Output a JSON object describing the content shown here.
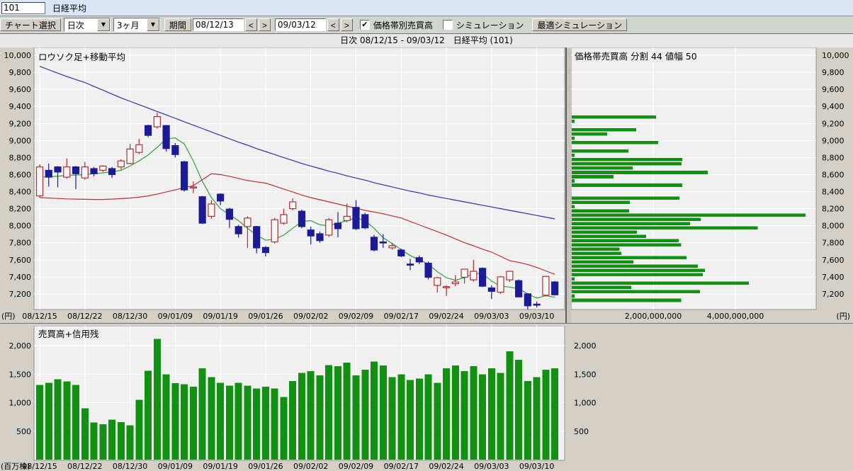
{
  "titlebar": {
    "stock_code": "101",
    "stock_name": "日経平均"
  },
  "toolbar": {
    "chart_select_button": "チャート選択",
    "frequency_select": "日次",
    "span_select": "3ヶ月",
    "period_button": "期間",
    "date_from": "08/12/13",
    "date_to": "09/03/12",
    "prev_button": "<",
    "next_button": ">",
    "volume_by_price_checkbox": {
      "label": "価格帯別売買高",
      "checked": true
    },
    "simulation_checkbox": {
      "label": "シミュレーション",
      "checked": false
    },
    "optimal_simulation_button": "最適シミュレーション"
  },
  "header_strip": {
    "text": "日次 08/12/15 - 09/03/12　日経平均 (101)"
  },
  "colors": {
    "candle_up": "#b03030",
    "candle_down": "#1b1b96",
    "ma_long": "#3030b0",
    "ma_mid": "#c03030",
    "ma_short": "#2f9f3f",
    "volume_bar": "#129012",
    "plot_bg": "#f0f0f0",
    "gutter": "#d4d0c8",
    "grid": "#ffffff"
  },
  "chart_data": [
    {
      "id": "main",
      "type": "candlestick",
      "title": "ロウソク足+移動平均",
      "unit_label": "(円)",
      "y_ticks": [
        7200,
        7400,
        7600,
        7800,
        8000,
        8200,
        8400,
        8600,
        8800,
        9000,
        9200,
        9400,
        9600,
        9800,
        10000
      ],
      "x_tick_indices": [
        0,
        5,
        10,
        15,
        20,
        25,
        30,
        35,
        40,
        45,
        50,
        55
      ],
      "x_tick_labels": [
        "08/12/15",
        "08/12/22",
        "08/12/30",
        "09/01/09",
        "09/01/19",
        "09/01/26",
        "09/02/02",
        "09/02/09",
        "09/02/17",
        "09/02/24",
        "09/03/03",
        "09/03/10"
      ],
      "dates": [
        "08/12/15",
        "08/12/16",
        "08/12/17",
        "08/12/18",
        "08/12/19",
        "08/12/22",
        "08/12/24",
        "08/12/25",
        "08/12/26",
        "08/12/29",
        "08/12/30",
        "09/01/05",
        "09/01/06",
        "09/01/07",
        "09/01/08",
        "09/01/09",
        "09/01/13",
        "09/01/14",
        "09/01/15",
        "09/01/16",
        "09/01/19",
        "09/01/20",
        "09/01/21",
        "09/01/22",
        "09/01/23",
        "09/01/26",
        "09/01/27",
        "09/01/28",
        "09/01/29",
        "09/01/30",
        "09/02/02",
        "09/02/03",
        "09/02/04",
        "09/02/05",
        "09/02/06",
        "09/02/09",
        "09/02/10",
        "09/02/12",
        "09/02/13",
        "09/02/16",
        "09/02/17",
        "09/02/18",
        "09/02/19",
        "09/02/20",
        "09/02/23",
        "09/02/24",
        "09/02/25",
        "09/02/26",
        "09/02/27",
        "09/03/02",
        "09/03/03",
        "09/03/04",
        "09/03/05",
        "09/03/06",
        "09/03/09",
        "09/03/10",
        "09/03/11",
        "09/03/12"
      ],
      "ohlc": [
        [
          8350,
          8720,
          8330,
          8690
        ],
        [
          8650,
          8730,
          8460,
          8570
        ],
        [
          8690,
          8700,
          8450,
          8630
        ],
        [
          8570,
          8790,
          8550,
          8690
        ],
        [
          8690,
          8700,
          8430,
          8610
        ],
        [
          8560,
          8750,
          8540,
          8690
        ],
        [
          8670,
          8690,
          8580,
          8610
        ],
        [
          8650,
          8710,
          8630,
          8700
        ],
        [
          8670,
          8690,
          8560,
          8600
        ],
        [
          8690,
          8780,
          8660,
          8760
        ],
        [
          8730,
          8960,
          8720,
          8900
        ],
        [
          8860,
          9020,
          8840,
          8950
        ],
        [
          9175,
          9185,
          9040,
          9060
        ],
        [
          9160,
          9325,
          9140,
          9280
        ],
        [
          9175,
          9180,
          8870,
          8905
        ],
        [
          8940,
          8970,
          8800,
          8835
        ],
        [
          8750,
          8760,
          8400,
          8420
        ],
        [
          8450,
          8520,
          8380,
          8455
        ],
        [
          8340,
          8350,
          8020,
          8030
        ],
        [
          8110,
          8300,
          8080,
          8255
        ],
        [
          8370,
          8380,
          8240,
          8290
        ],
        [
          8195,
          8210,
          7975,
          8075
        ],
        [
          7990,
          8010,
          7860,
          7905
        ],
        [
          7990,
          8110,
          7740,
          8090
        ],
        [
          7990,
          8000,
          7675,
          7740
        ],
        [
          7745,
          7760,
          7640,
          7685
        ],
        [
          7810,
          8090,
          7790,
          8070
        ],
        [
          8030,
          8200,
          8010,
          8130
        ],
        [
          8200,
          8320,
          8180,
          8280
        ],
        [
          8170,
          8190,
          7970,
          7990
        ],
        [
          7950,
          7990,
          7780,
          7880
        ],
        [
          7905,
          7930,
          7800,
          7825
        ],
        [
          7890,
          8090,
          7870,
          8070
        ],
        [
          8030,
          8160,
          7865,
          7965
        ],
        [
          8060,
          8260,
          8040,
          8110
        ],
        [
          8215,
          8300,
          7950,
          7965
        ],
        [
          8130,
          8150,
          7960,
          7975
        ],
        [
          7865,
          7890,
          7700,
          7715
        ],
        [
          7810,
          7900,
          7740,
          7805
        ],
        [
          7740,
          7800,
          7720,
          7765
        ],
        [
          7715,
          7730,
          7630,
          7645
        ],
        [
          7550,
          7610,
          7480,
          7545
        ],
        [
          7625,
          7650,
          7550,
          7575
        ],
        [
          7560,
          7580,
          7370,
          7395
        ],
        [
          7300,
          7400,
          7215,
          7390
        ],
        [
          7280,
          7300,
          7175,
          7285
        ],
        [
          7320,
          7420,
          7290,
          7340
        ],
        [
          7395,
          7480,
          7320,
          7490
        ],
        [
          7365,
          7600,
          7345,
          7465
        ],
        [
          7500,
          7510,
          7280,
          7290
        ],
        [
          7270,
          7300,
          7140,
          7230
        ],
        [
          7220,
          7410,
          7200,
          7400
        ],
        [
          7365,
          7470,
          7340,
          7465
        ],
        [
          7355,
          7370,
          7160,
          7165
        ],
        [
          7200,
          7210,
          7020,
          7060
        ],
        [
          7080,
          7110,
          7040,
          7075
        ],
        [
          7185,
          7410,
          7170,
          7405
        ],
        [
          7340,
          7350,
          7180,
          7190
        ]
      ],
      "ma": {
        "long": [
          9870,
          9830,
          9790,
          9750,
          9715,
          9680,
          9635,
          9590,
          9545,
          9500,
          9460,
          9420,
          9380,
          9340,
          9300,
          9260,
          9220,
          9180,
          9140,
          9100,
          9060,
          9020,
          8980,
          8945,
          8905,
          8870,
          8835,
          8800,
          8765,
          8730,
          8700,
          8670,
          8640,
          8615,
          8585,
          8560,
          8535,
          8505,
          8480,
          8455,
          8430,
          8405,
          8385,
          8360,
          8340,
          8320,
          8300,
          8280,
          8260,
          8240,
          8220,
          8200,
          8180,
          8160,
          8140,
          8120,
          8100,
          8080
        ],
        "mid": [
          8330,
          8325,
          8320,
          8315,
          8312,
          8310,
          8308,
          8308,
          8312,
          8318,
          8325,
          8335,
          8350,
          8370,
          8395,
          8420,
          8445,
          8470,
          8540,
          8610,
          8600,
          8580,
          8555,
          8530,
          8515,
          8500,
          8465,
          8430,
          8395,
          8360,
          8330,
          8305,
          8280,
          8255,
          8230,
          8205,
          8180,
          8160,
          8140,
          8115,
          8090,
          8050,
          8010,
          7970,
          7930,
          7890,
          7845,
          7800,
          7765,
          7725,
          7690,
          7640,
          7590,
          7570,
          7545,
          7510,
          7470,
          7430
        ],
        "short": [
          8570,
          8575,
          8580,
          8590,
          8595,
          8600,
          8610,
          8620,
          8635,
          8650,
          8700,
          8760,
          8830,
          8920,
          9020,
          9030,
          8960,
          8760,
          8520,
          8330,
          8200,
          8130,
          8060,
          7970,
          7890,
          7830,
          7840,
          7890,
          7970,
          8050,
          8060,
          8010,
          8000,
          8030,
          8060,
          8090,
          8060,
          7970,
          7860,
          7790,
          7720,
          7650,
          7600,
          7550,
          7460,
          7390,
          7360,
          7390,
          7440,
          7440,
          7350,
          7290,
          7280,
          7260,
          7200,
          7150,
          7180,
          7160
        ]
      }
    },
    {
      "id": "price_band",
      "type": "bar-horizontal",
      "title": "価格帯売買高  分割 44  値幅 50",
      "unit_label": "(円)",
      "band_top_price": 9300,
      "band_size": 50,
      "values_billion_yen": [
        2.05,
        0.07,
        0,
        1.57,
        0.86,
        0.07,
        2.1,
        0,
        1.38,
        0.07,
        2.69,
        2.67,
        1.48,
        3.31,
        1.02,
        0.07,
        2.69,
        0,
        0,
        2.62,
        1.41,
        0.07,
        1.4,
        5.69,
        3.14,
        2.88,
        4.53,
        1.59,
        1.81,
        2.6,
        2.66,
        1.16,
        1.21,
        2.79,
        1.5,
        3.07,
        3.24,
        3.19,
        0.07,
        4.31,
        1.45,
        3.12,
        0.07,
        2.66
      ],
      "x_tick_labels": [
        "2,000,000,000",
        "4,000,000,000"
      ],
      "x_tick_values_billion": [
        2,
        4
      ],
      "y_ticks": [
        7200,
        7400,
        7600,
        7800,
        8000,
        8200,
        8400,
        8600,
        8800,
        9000,
        9200,
        9400,
        9600,
        9800,
        10000
      ]
    },
    {
      "id": "volume",
      "type": "bar",
      "title": "売買高+信用残",
      "unit_label": "(百万株)",
      "y_ticks": [
        500,
        1000,
        1500,
        2000
      ],
      "values": [
        1310,
        1350,
        1410,
        1375,
        1310,
        900,
        650,
        620,
        700,
        660,
        600,
        1050,
        1560,
        2120,
        1500,
        1340,
        1320,
        1280,
        1600,
        1450,
        1350,
        1300,
        1350,
        1300,
        1250,
        1280,
        1250,
        1100,
        1380,
        1520,
        1550,
        1480,
        1660,
        1640,
        1700,
        1480,
        1580,
        1720,
        1650,
        1450,
        1500,
        1400,
        1420,
        1500,
        1350,
        1600,
        1650,
        1550,
        1640,
        1500,
        1600,
        1520,
        1900,
        1750,
        1380,
        1450,
        1580,
        1600
      ]
    }
  ]
}
